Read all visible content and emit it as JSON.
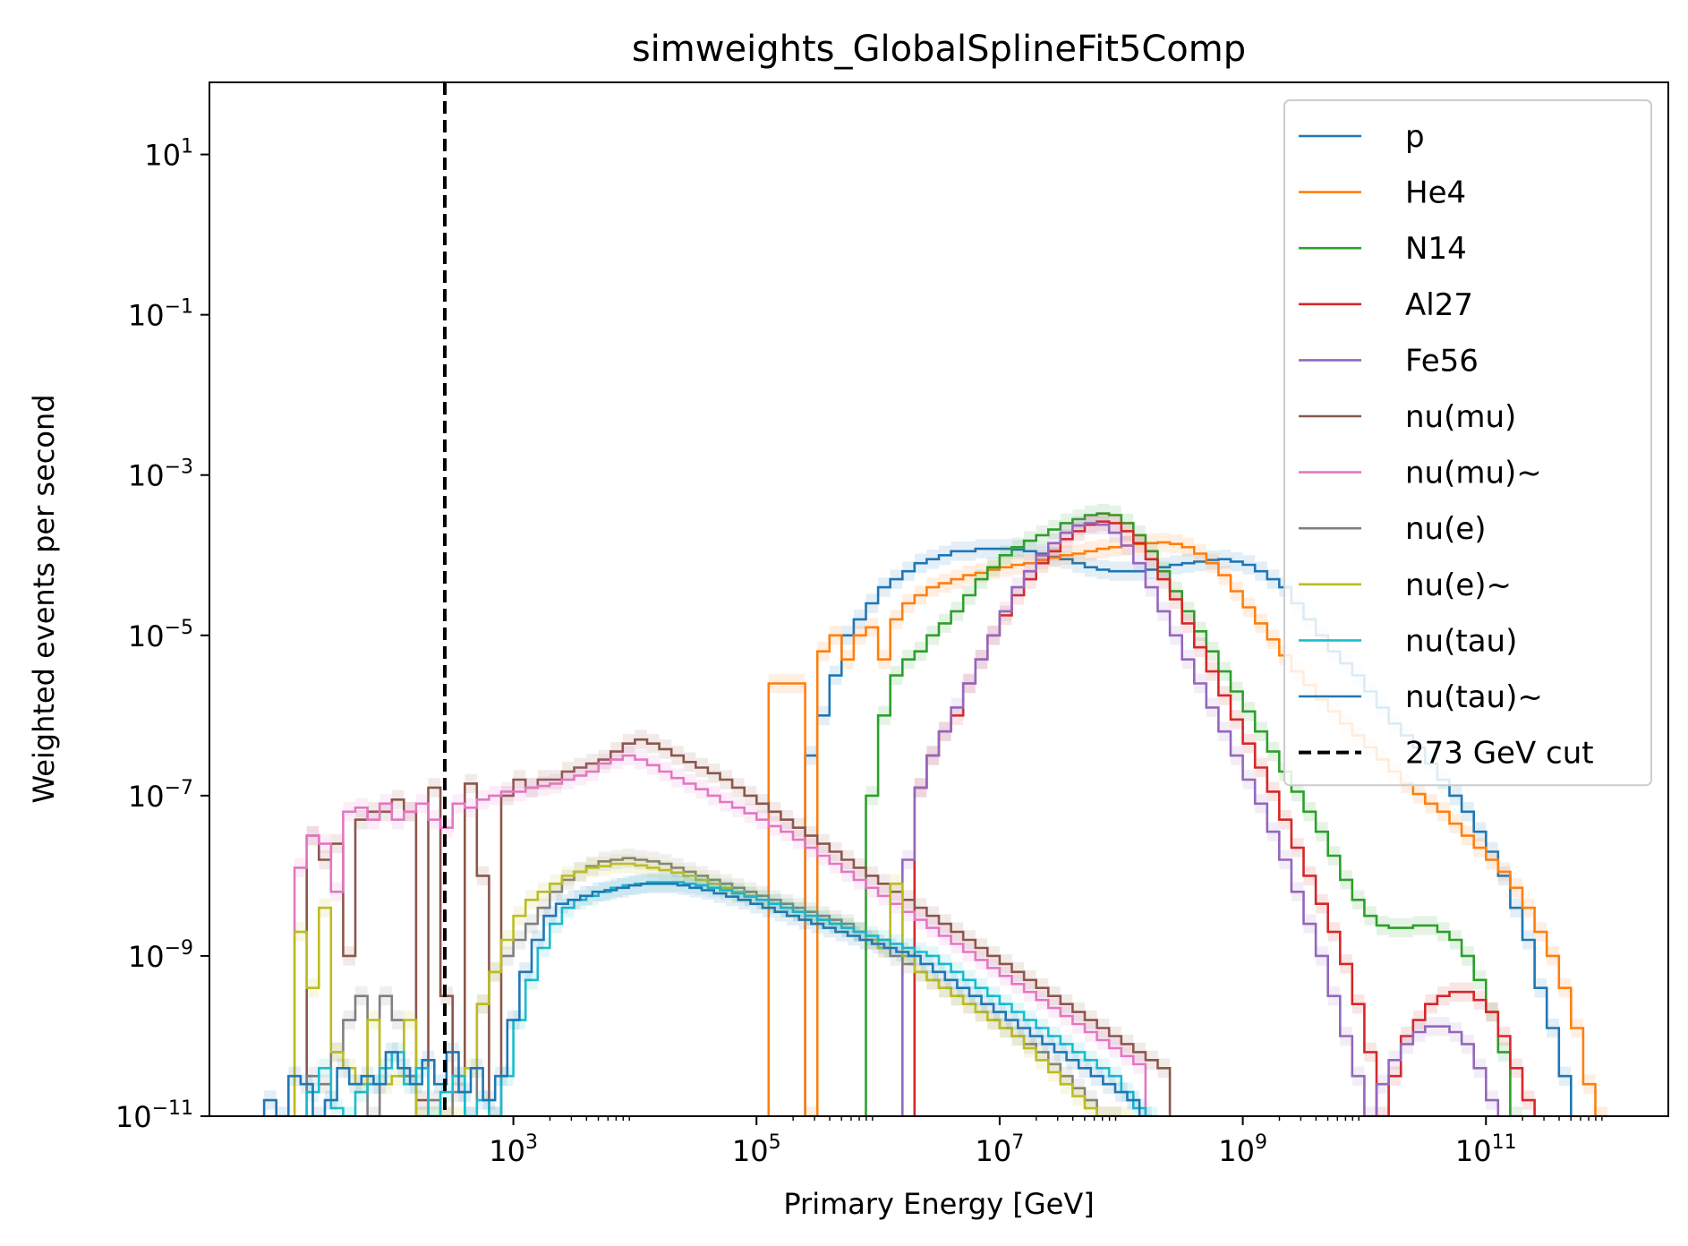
{
  "chart_data": {
    "type": "step-histogram",
    "title": "simweights_GlobalSplineFit5Comp",
    "xlabel": "Primary Energy [GeV]",
    "ylabel": "Weighted events per second",
    "xscale": "log",
    "yscale": "log",
    "xlim_log10": [
      0.5,
      12.5
    ],
    "ylim_log10": [
      -11,
      1.9
    ],
    "x_ticks": [
      {
        "label": "10",
        "exp": "3",
        "log": 3
      },
      {
        "label": "10",
        "exp": "5",
        "log": 5
      },
      {
        "label": "10",
        "exp": "7",
        "log": 7
      },
      {
        "label": "10",
        "exp": "9",
        "log": 9
      },
      {
        "label": "10",
        "exp": "11",
        "log": 11
      }
    ],
    "y_ticks": [
      {
        "label": "10",
        "exp": "1",
        "log": 1
      },
      {
        "label": "10",
        "exp": "−1",
        "log": -1
      },
      {
        "label": "10",
        "exp": "−3",
        "log": -3
      },
      {
        "label": "10",
        "exp": "−5",
        "log": -5
      },
      {
        "label": "10",
        "exp": "−7",
        "log": -7
      },
      {
        "label": "10",
        "exp": "−9",
        "log": -9
      },
      {
        "label": "10",
        "exp": "−11",
        "log": -11
      }
    ],
    "bin_width_log10": 0.1,
    "legend_position": "upper right",
    "cut_line": {
      "label": "273 GeV cut",
      "x": 273,
      "style": "dashed",
      "color": "#000000"
    },
    "series": [
      {
        "name": "p",
        "color": "#1f77b4",
        "start_log10": 5.4,
        "log10_y": [
          -6.5,
          -6.0,
          -5.5,
          -5.0,
          -4.8,
          -4.6,
          -4.4,
          -4.3,
          -4.2,
          -4.1,
          -4.05,
          -4.0,
          -3.95,
          -3.95,
          -3.92,
          -3.92,
          -3.92,
          -3.93,
          -3.95,
          -3.98,
          -4.02,
          -4.05,
          -4.1,
          -4.15,
          -4.18,
          -4.2,
          -4.2,
          -4.2,
          -4.18,
          -4.15,
          -4.12,
          -4.1,
          -4.08,
          -4.06,
          -4.05,
          -4.08,
          -4.12,
          -4.2,
          -4.3,
          -4.4,
          -4.6,
          -4.8,
          -5.0,
          -5.2,
          -5.35,
          -5.5,
          -5.7,
          -5.9,
          -6.1,
          -6.25,
          -6.4,
          -6.6,
          -6.8,
          -7.0,
          -7.2,
          -7.45,
          -7.7,
          -8.0,
          -8.4,
          -8.8,
          -9.4,
          -9.9,
          -10.5
        ]
      },
      {
        "name": "He4",
        "color": "#ff7f0e",
        "start_log10": 5.1,
        "log10_y": [
          -5.6,
          -5.6,
          -5.6,
          -11,
          -5.2,
          -5.0,
          -5.3,
          -5.0,
          -4.9,
          -5.3,
          -4.8,
          -4.6,
          -4.5,
          -4.4,
          -4.35,
          -4.3,
          -4.25,
          -4.22,
          -4.18,
          -4.15,
          -4.12,
          -4.1,
          -4.06,
          -4.03,
          -4.0,
          -3.98,
          -3.95,
          -3.92,
          -3.9,
          -3.88,
          -3.86,
          -3.85,
          -3.84,
          -3.86,
          -3.9,
          -3.98,
          -4.1,
          -4.25,
          -4.45,
          -4.65,
          -4.85,
          -5.05,
          -5.25,
          -5.45,
          -5.62,
          -5.8,
          -5.95,
          -6.1,
          -6.25,
          -6.4,
          -6.55,
          -6.7,
          -6.85,
          -6.98,
          -7.1,
          -7.2,
          -7.35,
          -7.5,
          -7.65,
          -7.8,
          -7.95,
          -8.15,
          -8.4,
          -8.7,
          -9.0,
          -9.4,
          -9.9,
          -10.6,
          -11
        ]
      },
      {
        "name": "N14",
        "color": "#2ca02c",
        "start_log10": 5.9,
        "log10_y": [
          -7.0,
          -6.0,
          -5.5,
          -5.3,
          -5.2,
          -5.0,
          -4.85,
          -4.7,
          -4.5,
          -4.3,
          -4.15,
          -4.0,
          -3.9,
          -3.82,
          -3.75,
          -3.68,
          -3.6,
          -3.55,
          -3.5,
          -3.48,
          -3.5,
          -3.6,
          -3.75,
          -3.95,
          -4.2,
          -4.45,
          -4.7,
          -4.95,
          -5.2,
          -5.45,
          -5.7,
          -5.95,
          -6.2,
          -6.45,
          -6.7,
          -6.95,
          -7.2,
          -7.45,
          -7.75,
          -8.05,
          -8.3,
          -8.5,
          -8.62,
          -8.65,
          -8.65,
          -8.62,
          -8.62,
          -8.7,
          -8.8,
          -9.0,
          -9.3,
          -9.7,
          -10.2,
          -11
        ]
      },
      {
        "name": "Al27",
        "color": "#d62728",
        "start_log10": 6.3,
        "log10_y": [
          -6.9,
          -6.5,
          -6.2,
          -6.0,
          -5.6,
          -5.3,
          -5.0,
          -4.75,
          -4.5,
          -4.3,
          -4.1,
          -3.95,
          -3.8,
          -3.7,
          -3.62,
          -3.58,
          -3.6,
          -3.7,
          -3.85,
          -4.05,
          -4.3,
          -4.55,
          -4.85,
          -5.15,
          -5.45,
          -5.75,
          -6.05,
          -6.35,
          -6.65,
          -6.95,
          -7.3,
          -7.65,
          -8.0,
          -8.35,
          -8.7,
          -9.1,
          -9.6,
          -10.2,
          -11,
          -10.5,
          -10.0,
          -9.8,
          -9.6,
          -9.5,
          -9.45,
          -9.45,
          -9.55,
          -9.7,
          -10.0,
          -10.4,
          -10.8
        ]
      },
      {
        "name": "Fe56",
        "color": "#9467bd",
        "start_log10": 6.2,
        "log10_y": [
          -7.8,
          -6.9,
          -6.5,
          -6.2,
          -5.9,
          -5.6,
          -5.3,
          -5.0,
          -4.7,
          -4.4,
          -4.2,
          -4.0,
          -3.85,
          -3.72,
          -3.63,
          -3.6,
          -3.62,
          -3.72,
          -3.88,
          -4.1,
          -4.4,
          -4.7,
          -5.0,
          -5.3,
          -5.6,
          -5.9,
          -6.2,
          -6.5,
          -6.8,
          -7.1,
          -7.45,
          -7.8,
          -8.2,
          -8.6,
          -9.0,
          -9.5,
          -10.0,
          -10.5,
          -11,
          -10.6,
          -10.3,
          -10.1,
          -9.95,
          -9.88,
          -9.88,
          -9.95,
          -10.1,
          -10.4,
          -10.8
        ]
      },
      {
        "name": "nu(mu)",
        "color": "#8c564b",
        "start_log10": 1.3,
        "log10_y": [
          -7.5,
          -7.8,
          -7.6,
          -9.0,
          -7.3,
          -7.2,
          -7.2,
          -7.05,
          -7.2,
          -10.8,
          -6.9,
          -9.5,
          -10.5,
          -6.85,
          -8.0,
          -11,
          -7.0,
          -6.8,
          -6.9,
          -6.8,
          -6.8,
          -6.7,
          -6.65,
          -6.6,
          -6.55,
          -6.45,
          -6.35,
          -6.3,
          -6.35,
          -6.42,
          -6.5,
          -6.58,
          -6.65,
          -6.72,
          -6.8,
          -6.9,
          -7.0,
          -7.1,
          -7.2,
          -7.3,
          -7.4,
          -7.5,
          -7.6,
          -7.7,
          -7.8,
          -7.9,
          -8.0,
          -8.1,
          -8.2,
          -8.3,
          -8.4,
          -8.5,
          -8.6,
          -8.7,
          -8.8,
          -8.9,
          -9.0,
          -9.1,
          -9.2,
          -9.3,
          -9.4,
          -9.5,
          -9.6,
          -9.7,
          -9.8,
          -9.9,
          -10.0,
          -10.1,
          -10.2,
          -10.3,
          -10.4
        ]
      },
      {
        "name": "nu(mu)~",
        "color": "#e377c2",
        "start_log10": 1.2,
        "log10_y": [
          -7.9,
          -7.5,
          -7.6,
          -8.2,
          -7.2,
          -7.15,
          -7.3,
          -7.1,
          -7.3,
          -7.2,
          -7.1,
          -7.3,
          -7.4,
          -7.1,
          -7.15,
          -7.05,
          -7.0,
          -6.95,
          -6.95,
          -6.9,
          -6.88,
          -6.85,
          -6.8,
          -6.75,
          -6.7,
          -6.6,
          -6.55,
          -6.5,
          -6.55,
          -6.62,
          -6.7,
          -6.78,
          -6.85,
          -6.92,
          -7.0,
          -7.08,
          -7.15,
          -7.22,
          -7.3,
          -7.38,
          -7.45,
          -7.55,
          -7.65,
          -7.75,
          -7.85,
          -7.95,
          -8.05,
          -8.15,
          -8.25,
          -8.35,
          -8.45,
          -8.55,
          -8.65,
          -8.75,
          -8.85,
          -8.95,
          -9.05,
          -9.15,
          -9.25,
          -9.35,
          -9.45,
          -9.55,
          -9.65,
          -9.75,
          -9.85,
          -9.95,
          -10.05,
          -10.15,
          -10.25,
          -10.35
        ]
      },
      {
        "name": "nu(e)",
        "color": "#7f7f7f",
        "start_log10": 1.3,
        "log10_y": [
          -10.5,
          -10.6,
          -10.2,
          -9.8,
          -9.5,
          -11,
          -9.5,
          -9.8,
          -10.5,
          -11,
          -10.8,
          -11,
          -10.7,
          -11,
          -9.6,
          -9.2,
          -9.0,
          -8.8,
          -8.6,
          -8.4,
          -8.2,
          -8.05,
          -7.95,
          -7.88,
          -7.82,
          -7.8,
          -7.78,
          -7.8,
          -7.82,
          -7.85,
          -7.9,
          -7.95,
          -8.0,
          -8.05,
          -8.1,
          -8.15,
          -8.2,
          -8.25,
          -8.3,
          -8.35,
          -8.4,
          -8.45,
          -8.5,
          -8.55,
          -8.6,
          -8.7,
          -8.8,
          -8.9,
          -9.0,
          -9.1,
          -9.2,
          -9.3,
          -9.4,
          -9.5,
          -9.6,
          -9.7,
          -9.8,
          -9.9,
          -10.0,
          -10.1,
          -10.2,
          -10.35,
          -10.5,
          -10.65,
          -10.8,
          -11,
          -11
        ]
      },
      {
        "name": "nu(e)~",
        "color": "#bcbd22",
        "start_log10": 1.2,
        "log10_y": [
          -8.7,
          -9.4,
          -8.4,
          -10.2,
          -10.4,
          -10.6,
          -9.8,
          -10.6,
          -10.5,
          -9.8,
          -11,
          -11,
          -11,
          -11,
          -10.4,
          -9.6,
          -9.2,
          -8.8,
          -8.5,
          -8.3,
          -8.2,
          -8.1,
          -8.0,
          -7.95,
          -7.9,
          -7.88,
          -7.85,
          -7.85,
          -7.87,
          -7.9,
          -7.93,
          -7.96,
          -8.0,
          -8.05,
          -8.1,
          -8.15,
          -8.2,
          -8.25,
          -8.3,
          -8.35,
          -8.4,
          -8.45,
          -8.5,
          -8.55,
          -8.6,
          -8.65,
          -8.7,
          -8.8,
          -8.9,
          -8.1,
          -9.0,
          -9.2,
          -9.3,
          -9.4,
          -9.5,
          -9.6,
          -9.7,
          -9.8,
          -9.9,
          -10.0,
          -10.15,
          -10.3,
          -10.45,
          -10.6,
          -10.75,
          -10.9,
          -11,
          -11,
          -11
        ]
      },
      {
        "name": "nu(tau)",
        "color": "#17becf",
        "start_log10": 1.3,
        "log10_y": [
          -10.7,
          -10.4,
          -10.9,
          -11,
          -10.7,
          -10.6,
          -10.4,
          -10.2,
          -10.6,
          -10.4,
          -11,
          -10.7,
          -10.5,
          -11,
          -10.8,
          -11,
          -10.5,
          -9.8,
          -9.3,
          -8.9,
          -8.6,
          -8.4,
          -8.3,
          -8.25,
          -8.2,
          -8.15,
          -8.12,
          -8.1,
          -8.08,
          -8.08,
          -8.08,
          -8.1,
          -8.12,
          -8.15,
          -8.18,
          -8.22,
          -8.26,
          -8.3,
          -8.35,
          -8.4,
          -8.45,
          -8.5,
          -8.55,
          -8.6,
          -8.65,
          -8.7,
          -8.75,
          -8.8,
          -8.85,
          -8.9,
          -8.95,
          -9.0,
          -9.1,
          -9.2,
          -9.3,
          -9.4,
          -9.5,
          -9.6,
          -9.7,
          -9.8,
          -9.9,
          -10.0,
          -10.1,
          -10.2,
          -10.3,
          -10.4,
          -10.5,
          -10.7,
          -10.9,
          -11
        ]
      },
      {
        "name": "nu(tau)~",
        "color": "#1f77b4",
        "start_log10": 0.95,
        "log10_y": [
          -10.8,
          -11,
          -10.5,
          -10.6,
          -11,
          -10.8,
          -10.4,
          -10.6,
          -10.5,
          -10.6,
          -10.2,
          -10.4,
          -10.6,
          -10.3,
          -10.6,
          -10.2,
          -10.7,
          -10.4,
          -10.8,
          -10.5,
          -9.8,
          -9.2,
          -8.8,
          -8.5,
          -8.35,
          -8.3,
          -8.25,
          -8.2,
          -8.18,
          -8.15,
          -8.12,
          -8.1,
          -8.1,
          -8.1,
          -8.12,
          -8.15,
          -8.18,
          -8.22,
          -8.26,
          -8.3,
          -8.35,
          -8.4,
          -8.45,
          -8.5,
          -8.55,
          -8.6,
          -8.65,
          -8.7,
          -8.75,
          -8.8,
          -8.85,
          -8.9,
          -8.95,
          -9.0,
          -9.1,
          -9.2,
          -9.3,
          -9.4,
          -9.5,
          -9.6,
          -9.7,
          -9.8,
          -9.9,
          -10.0,
          -10.1,
          -10.2,
          -10.3,
          -10.4,
          -10.5,
          -10.6,
          -10.7,
          -10.8,
          -11
        ]
      }
    ]
  }
}
